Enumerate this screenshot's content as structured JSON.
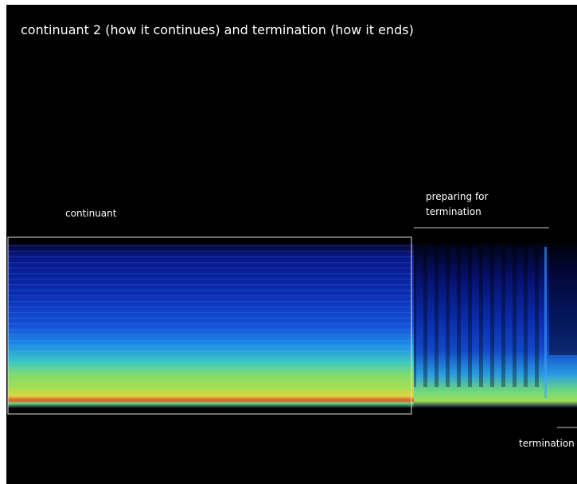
{
  "title": "continuant 2 (how it continues) and termination (how it ends)",
  "annotations": {
    "continuant": "continuant",
    "preparing": [
      "preparing for",
      "termination"
    ],
    "termination": "termination"
  }
}
